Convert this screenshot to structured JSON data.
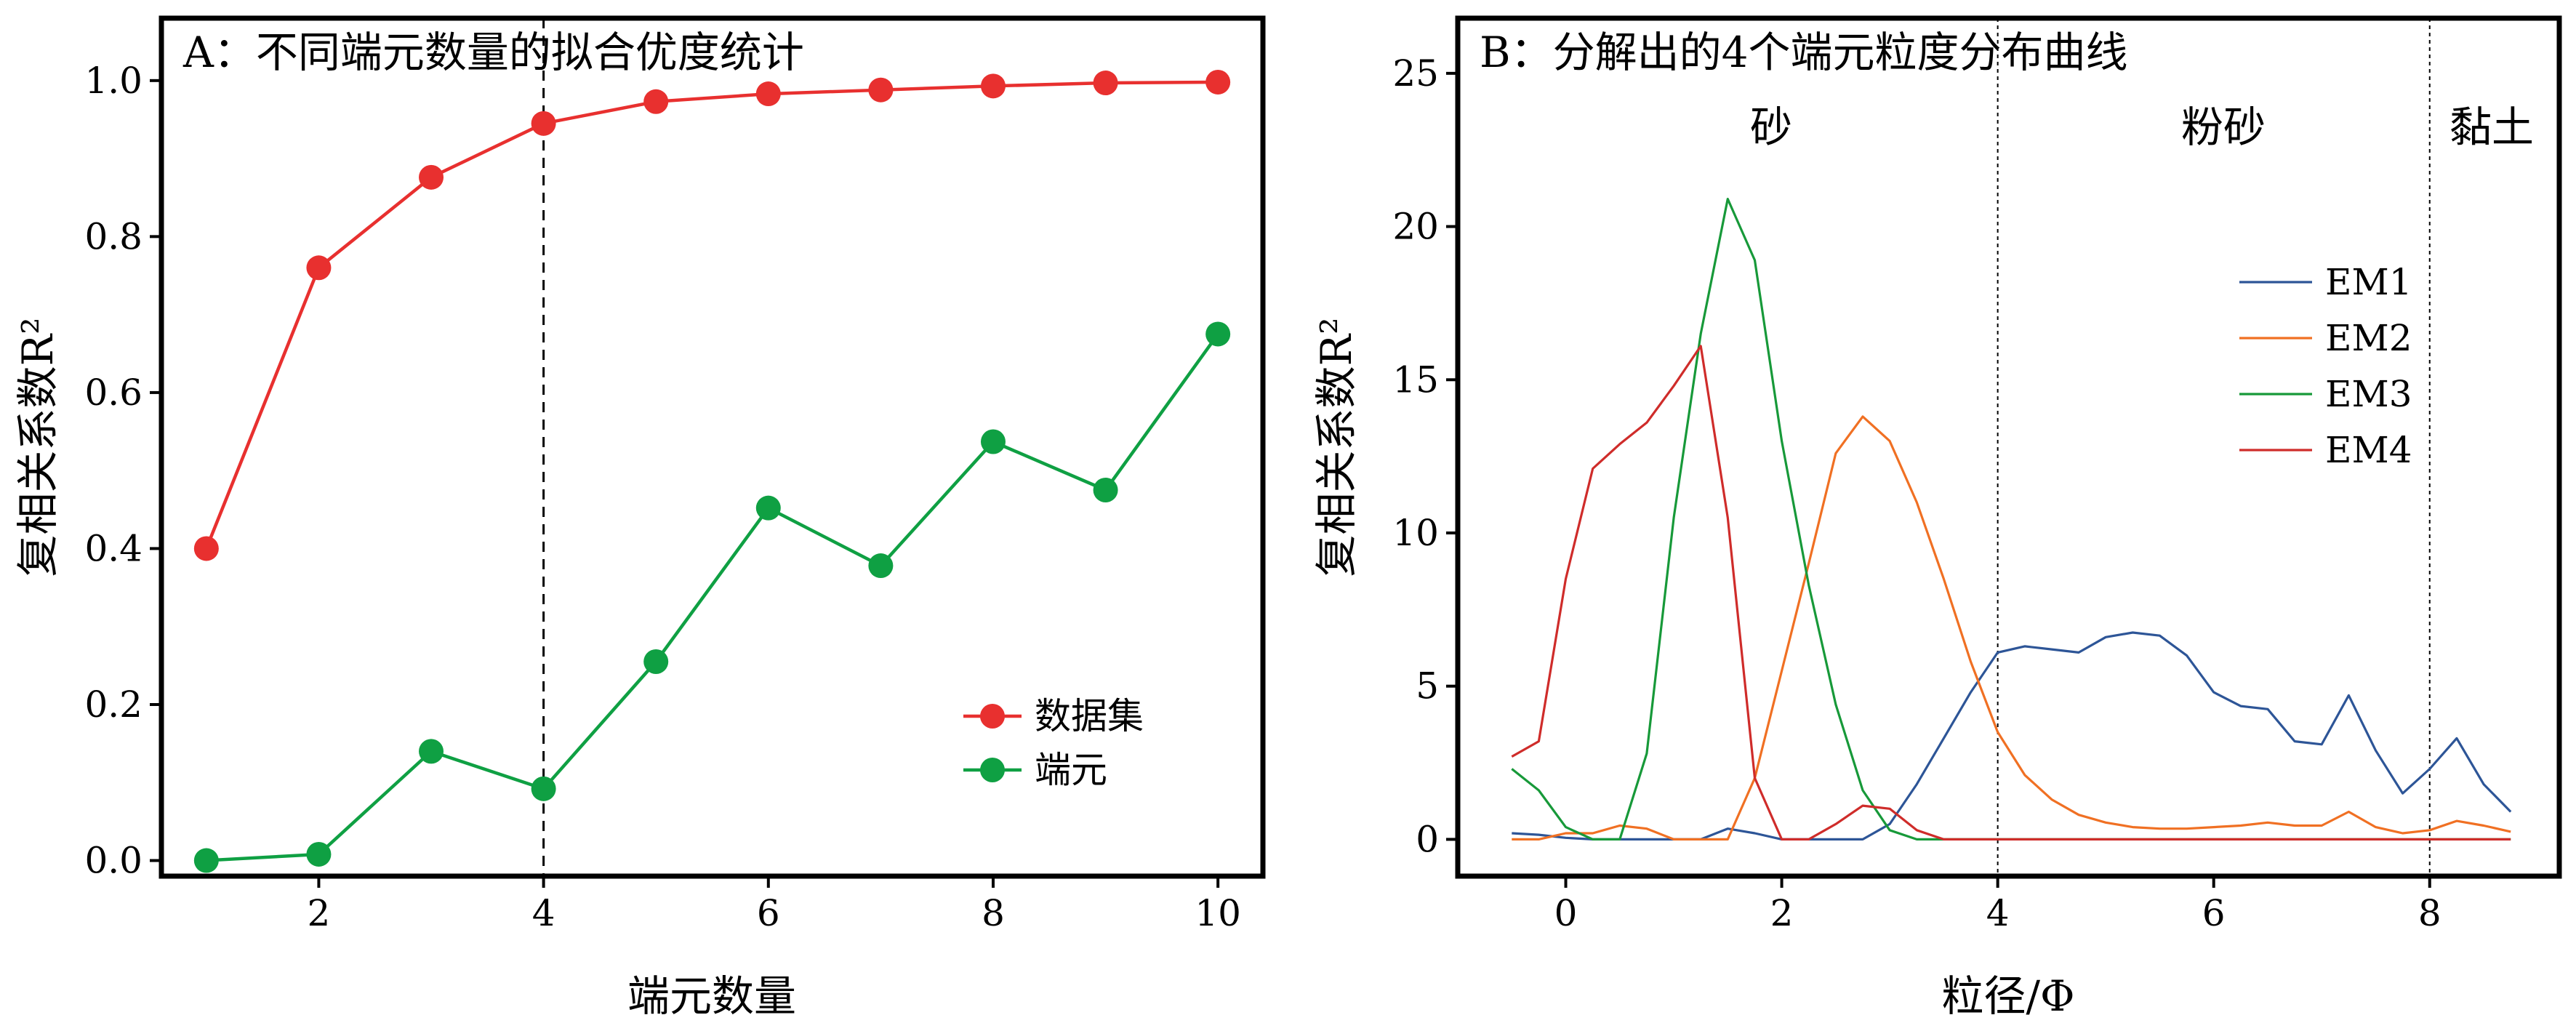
{
  "colors": {
    "red": "#e8302f",
    "green": "#0fa043",
    "em1": "#2d5597",
    "em2": "#f07023",
    "em3": "#179939",
    "em4": "#cf2c2a"
  },
  "chart_data": [
    {
      "type": "line",
      "title": "A：不同端元数量的拟合优度统计",
      "xlabel": "端元数量",
      "ylabel": "复相关系数R²",
      "xlim": [
        0.6,
        10.4
      ],
      "ylim": [
        -0.02,
        1.08
      ],
      "xticks": [
        2,
        4,
        6,
        8,
        10
      ],
      "yticks": [
        "0.0",
        "0.2",
        "0.4",
        "0.6",
        "0.8",
        "1.0"
      ],
      "vline": 4,
      "legend_position": "lower-right",
      "x": [
        1,
        2,
        3,
        4,
        5,
        6,
        7,
        8,
        9,
        10
      ],
      "series": [
        {
          "name": "数据集",
          "color": "#e8302f",
          "values": [
            0.4,
            0.76,
            0.876,
            0.945,
            0.973,
            0.983,
            0.988,
            0.993,
            0.997,
            0.998
          ]
        },
        {
          "name": "端元",
          "color": "#0fa043",
          "values": [
            0.0,
            0.008,
            0.14,
            0.092,
            0.255,
            0.452,
            0.378,
            0.537,
            0.475,
            0.675
          ]
        }
      ]
    },
    {
      "type": "line",
      "title": "B：分解出的4个端元粒度分布曲线",
      "xlabel": "粒径/Φ",
      "ylabel": "复相关系数R²",
      "xlim": [
        -1.0,
        9.2
      ],
      "ylim": [
        -1.2,
        26.8
      ],
      "xticks": [
        0,
        2,
        4,
        6,
        8
      ],
      "yticks": [
        "0",
        "5",
        "10",
        "15",
        "20",
        "25"
      ],
      "vlines": [
        4,
        8
      ],
      "regions": [
        "砂",
        "粉砂",
        "黏土"
      ],
      "legend_position": "upper-right",
      "x": [
        -0.5,
        -0.25,
        0,
        0.25,
        0.5,
        0.75,
        1,
        1.25,
        1.5,
        1.75,
        2,
        2.25,
        2.5,
        2.75,
        3,
        3.25,
        3.5,
        3.75,
        4,
        4.25,
        4.5,
        4.75,
        5,
        5.25,
        5.5,
        5.75,
        6,
        6.25,
        6.5,
        6.75,
        7,
        7.25,
        7.5,
        7.75,
        8,
        8.25,
        8.5,
        8.75
      ],
      "series": [
        {
          "name": "EM1",
          "color": "#2d5597",
          "values": [
            0.2,
            0.15,
            0.05,
            0,
            0,
            0,
            0,
            0,
            0.35,
            0.2,
            0,
            0,
            0,
            0,
            0.5,
            1.8,
            3.3,
            4.8,
            6.1,
            6.3,
            6.2,
            6.1,
            6.6,
            6.75,
            6.65,
            6.0,
            4.8,
            4.35,
            4.25,
            3.2,
            3.1,
            4.7,
            2.9,
            1.5,
            2.3,
            3.3,
            1.8,
            0.9
          ]
        },
        {
          "name": "EM2",
          "color": "#f07023",
          "values": [
            0,
            0,
            0.2,
            0.2,
            0.45,
            0.35,
            0,
            0,
            0,
            2.0,
            5.5,
            9.0,
            12.6,
            13.8,
            13.0,
            11.0,
            8.5,
            5.8,
            3.5,
            2.1,
            1.3,
            0.8,
            0.55,
            0.4,
            0.35,
            0.35,
            0.4,
            0.45,
            0.55,
            0.45,
            0.45,
            0.9,
            0.4,
            0.2,
            0.3,
            0.6,
            0.45,
            0.25
          ]
        },
        {
          "name": "EM3",
          "color": "#179939",
          "values": [
            2.3,
            1.6,
            0.4,
            0,
            0,
            2.8,
            10.5,
            16.5,
            20.9,
            18.9,
            13.0,
            8.3,
            4.4,
            1.6,
            0.3,
            0,
            0,
            0,
            0,
            0,
            0,
            0,
            0,
            0,
            0,
            0,
            0,
            0,
            0,
            0,
            0,
            0,
            0,
            0,
            0,
            0,
            0,
            0
          ]
        },
        {
          "name": "EM4",
          "color": "#cf2c2a",
          "values": [
            2.7,
            3.2,
            8.5,
            12.1,
            12.9,
            13.6,
            14.8,
            16.1,
            10.5,
            2.0,
            0,
            0,
            0.5,
            1.1,
            1.0,
            0.3,
            0,
            0,
            0,
            0,
            0,
            0,
            0,
            0,
            0,
            0,
            0,
            0,
            0,
            0,
            0,
            0,
            0,
            0,
            0,
            0,
            0,
            0
          ]
        }
      ]
    }
  ]
}
